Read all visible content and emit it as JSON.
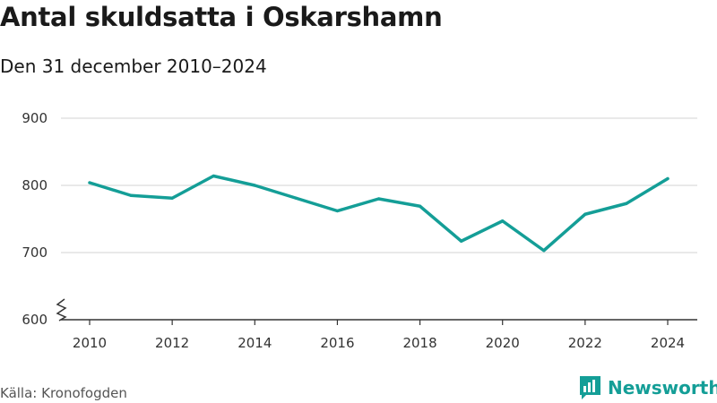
{
  "header": {
    "title": "Antal skuldsatta i Oskarshamn",
    "subtitle": "Den 31 december 2010–2024"
  },
  "footer": {
    "source": "Källa: Kronofogden",
    "brand": "Newsworthy",
    "brand_icon": "bar-chart-speech-bubble-icon"
  },
  "colors": {
    "line": "#149e97",
    "grid": "#dcdcdc",
    "axis": "#333333",
    "brand": "#149e97"
  },
  "chart_data": {
    "type": "line",
    "title": "Antal skuldsatta i Oskarshamn",
    "subtitle": "Den 31 december 2010–2024",
    "x": [
      2010,
      2011,
      2012,
      2013,
      2014,
      2015,
      2016,
      2017,
      2018,
      2019,
      2020,
      2021,
      2022,
      2023,
      2024
    ],
    "series": [
      {
        "values": [
          804,
          785,
          781,
          814,
          800,
          781,
          762,
          780,
          769,
          717,
          747,
          703,
          757,
          773,
          810
        ]
      }
    ],
    "xticks": [
      "2010",
      "2012",
      "2014",
      "2016",
      "2018",
      "2020",
      "2022",
      "2024"
    ],
    "yticks": [
      "600",
      "700",
      "800",
      "900"
    ],
    "xlim": [
      2010,
      2024
    ],
    "ylim": [
      600,
      900
    ],
    "y_axis_break": true,
    "grid": "horizontal",
    "legend": "none"
  }
}
